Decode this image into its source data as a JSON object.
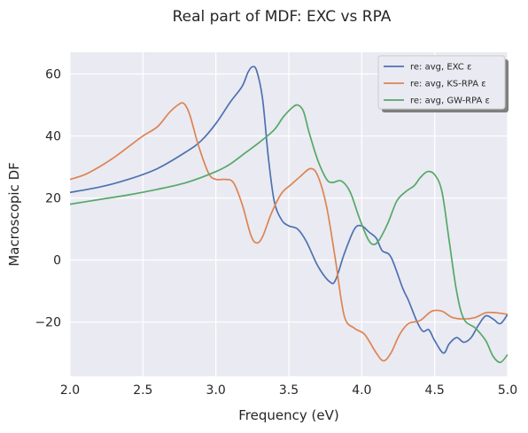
{
  "chart_data": {
    "type": "line",
    "title": "Real part of MDF: EXC vs RPA",
    "xlabel": "Frequency (eV)",
    "ylabel": "Macroscopic DF",
    "xlim": [
      2.0,
      5.0
    ],
    "ylim": [
      -37.5,
      67
    ],
    "x_ticks": [
      2.0,
      2.5,
      3.0,
      3.5,
      4.0,
      4.5,
      5.0
    ],
    "x_tick_labels": [
      "2.0",
      "2.5",
      "3.0",
      "3.5",
      "4.0",
      "4.5",
      "5.0"
    ],
    "y_ticks": [
      60,
      40,
      20,
      0,
      -20
    ],
    "y_tick_labels": [
      "60",
      "40",
      "20",
      "0",
      "−20"
    ],
    "grid": true,
    "legend_position": "top-right",
    "series": [
      {
        "name": "re: avg, EXC ε",
        "color": "#4c72b0",
        "points": [
          [
            2.0,
            21.8
          ],
          [
            2.2,
            23.5
          ],
          [
            2.4,
            26.0
          ],
          [
            2.6,
            29.5
          ],
          [
            2.8,
            35.0
          ],
          [
            2.9,
            38.5
          ],
          [
            3.0,
            44.0
          ],
          [
            3.1,
            51.0
          ],
          [
            3.18,
            56.0
          ],
          [
            3.22,
            60.5
          ],
          [
            3.25,
            62.3
          ],
          [
            3.28,
            61.0
          ],
          [
            3.32,
            52.0
          ],
          [
            3.36,
            33.0
          ],
          [
            3.4,
            19.0
          ],
          [
            3.45,
            13.0
          ],
          [
            3.5,
            11.0
          ],
          [
            3.56,
            10.0
          ],
          [
            3.62,
            6.0
          ],
          [
            3.7,
            -2.0
          ],
          [
            3.78,
            -7.0
          ],
          [
            3.82,
            -6.5
          ],
          [
            3.88,
            2.0
          ],
          [
            3.95,
            10.0
          ],
          [
            4.0,
            11.0
          ],
          [
            4.05,
            9.0
          ],
          [
            4.1,
            7.0
          ],
          [
            4.14,
            3.0
          ],
          [
            4.2,
            1.0
          ],
          [
            4.28,
            -9.0
          ],
          [
            4.32,
            -13.0
          ],
          [
            4.38,
            -20.0
          ],
          [
            4.42,
            -23.0
          ],
          [
            4.46,
            -22.5
          ],
          [
            4.5,
            -26.0
          ],
          [
            4.56,
            -30.0
          ],
          [
            4.6,
            -27.0
          ],
          [
            4.65,
            -25.0
          ],
          [
            4.7,
            -26.5
          ],
          [
            4.75,
            -25.0
          ],
          [
            4.8,
            -21.0
          ],
          [
            4.85,
            -18.0
          ],
          [
            4.9,
            -19.0
          ],
          [
            4.95,
            -20.5
          ],
          [
            5.0,
            -17.5
          ]
        ]
      },
      {
        "name": "re: avg, KS-RPA ε",
        "color": "#dd8452",
        "points": [
          [
            2.0,
            26.0
          ],
          [
            2.1,
            27.5
          ],
          [
            2.2,
            30.0
          ],
          [
            2.3,
            33.0
          ],
          [
            2.4,
            36.5
          ],
          [
            2.5,
            40.0
          ],
          [
            2.6,
            43.0
          ],
          [
            2.68,
            47.5
          ],
          [
            2.74,
            50.0
          ],
          [
            2.78,
            50.5
          ],
          [
            2.82,
            47.0
          ],
          [
            2.88,
            37.0
          ],
          [
            2.95,
            28.0
          ],
          [
            3.0,
            26.0
          ],
          [
            3.06,
            26.0
          ],
          [
            3.12,
            25.0
          ],
          [
            3.18,
            18.0
          ],
          [
            3.24,
            8.0
          ],
          [
            3.28,
            5.5
          ],
          [
            3.32,
            7.5
          ],
          [
            3.38,
            15.0
          ],
          [
            3.45,
            21.5
          ],
          [
            3.52,
            24.5
          ],
          [
            3.58,
            27.0
          ],
          [
            3.65,
            29.5
          ],
          [
            3.7,
            27.0
          ],
          [
            3.76,
            17.0
          ],
          [
            3.82,
            0.0
          ],
          [
            3.88,
            -18.0
          ],
          [
            3.95,
            -22.0
          ],
          [
            4.02,
            -24.0
          ],
          [
            4.1,
            -30.0
          ],
          [
            4.15,
            -32.5
          ],
          [
            4.2,
            -30.0
          ],
          [
            4.26,
            -24.0
          ],
          [
            4.32,
            -20.5
          ],
          [
            4.4,
            -19.5
          ],
          [
            4.48,
            -16.5
          ],
          [
            4.55,
            -16.5
          ],
          [
            4.62,
            -18.5
          ],
          [
            4.7,
            -19.0
          ],
          [
            4.78,
            -18.5
          ],
          [
            4.85,
            -17.0
          ],
          [
            4.92,
            -17.0
          ],
          [
            5.0,
            -17.5
          ]
        ]
      },
      {
        "name": "re: avg, GW-RPA ε",
        "color": "#55a868",
        "points": [
          [
            2.0,
            18.0
          ],
          [
            2.2,
            19.5
          ],
          [
            2.4,
            21.0
          ],
          [
            2.6,
            22.8
          ],
          [
            2.8,
            25.0
          ],
          [
            3.0,
            28.5
          ],
          [
            3.1,
            31.0
          ],
          [
            3.2,
            34.5
          ],
          [
            3.3,
            38.0
          ],
          [
            3.4,
            42.0
          ],
          [
            3.46,
            46.0
          ],
          [
            3.52,
            49.0
          ],
          [
            3.56,
            50.0
          ],
          [
            3.6,
            48.0
          ],
          [
            3.64,
            41.0
          ],
          [
            3.7,
            32.0
          ],
          [
            3.76,
            26.0
          ],
          [
            3.8,
            25.0
          ],
          [
            3.86,
            25.5
          ],
          [
            3.92,
            22.0
          ],
          [
            3.98,
            14.0
          ],
          [
            4.04,
            7.0
          ],
          [
            4.08,
            5.0
          ],
          [
            4.12,
            6.5
          ],
          [
            4.18,
            12.0
          ],
          [
            4.24,
            19.0
          ],
          [
            4.3,
            22.0
          ],
          [
            4.36,
            24.0
          ],
          [
            4.4,
            26.5
          ],
          [
            4.45,
            28.5
          ],
          [
            4.5,
            27.5
          ],
          [
            4.55,
            22.0
          ],
          [
            4.6,
            6.0
          ],
          [
            4.65,
            -10.0
          ],
          [
            4.7,
            -19.0
          ],
          [
            4.78,
            -22.0
          ],
          [
            4.85,
            -26.0
          ],
          [
            4.9,
            -31.0
          ],
          [
            4.95,
            -33.0
          ],
          [
            5.0,
            -30.5
          ]
        ]
      }
    ]
  }
}
